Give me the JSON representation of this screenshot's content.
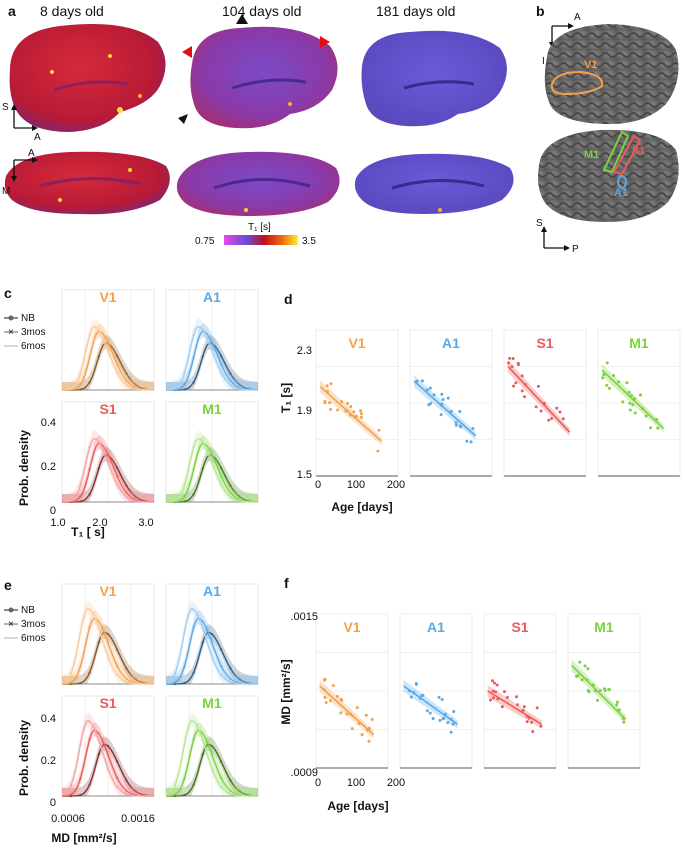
{
  "figure": {
    "panels": {
      "a": "a",
      "b": "b",
      "c": "c",
      "d": "d",
      "e": "e",
      "f": "f"
    },
    "ages": [
      "8 days old",
      "104 days old",
      "181 days old"
    ],
    "orientation": {
      "S": "S",
      "A": "A",
      "M": "M",
      "I": "I",
      "P": "P"
    },
    "colorbar": {
      "title": "T₁ [s]",
      "min": "0.75",
      "max": "3.5"
    },
    "regions": [
      "V1",
      "A1",
      "S1",
      "M1"
    ],
    "region_colors": {
      "V1": "#f5a04a",
      "A1": "#5aa8e6",
      "S1": "#ee5a5a",
      "M1": "#7ad23c"
    },
    "legend": [
      "NB",
      "3mos",
      "6mos"
    ]
  },
  "chart_data": [
    {
      "id": "c",
      "type": "line",
      "ylabel": "Prob. density",
      "xlabel": "T₁ [ s]",
      "xticks": [
        "1.0",
        "2.0",
        "3.0"
      ],
      "yticks": [
        "0",
        "0.2",
        "0.4"
      ],
      "ylim": [
        0,
        0.4
      ],
      "xlim": [
        1.0,
        3.0
      ],
      "series_peaks": {
        "NB": 1.95,
        "3mos": 1.8,
        "6mos": 1.7
      },
      "peak_density": [
        0.2,
        0.25,
        0.27
      ]
    },
    {
      "id": "d",
      "type": "scatter",
      "ylabel": "T₁ [s]",
      "xlabel": "Age [days]",
      "yticks": [
        "2.3",
        "1.9",
        "1.5"
      ],
      "ylim": [
        1.5,
        2.3
      ],
      "xticks": [
        "0",
        "100",
        "200"
      ],
      "xlim": [
        0,
        200
      ],
      "fits": [
        {
          "region": "V1",
          "start": 1.99,
          "end": 1.69
        },
        {
          "region": "A1",
          "start": 2.02,
          "end": 1.72
        },
        {
          "region": "S1",
          "start": 2.1,
          "end": 1.74
        },
        {
          "region": "M1",
          "start": 2.08,
          "end": 1.76
        }
      ]
    },
    {
      "id": "e",
      "type": "line",
      "ylabel": "Prob. density",
      "xlabel": "MD [mm²/s]",
      "xticks": [
        "0.0006",
        "0.0016"
      ],
      "yticks": [
        "0",
        "0.2",
        "0.4"
      ],
      "ylim": [
        0,
        0.4
      ],
      "xlim": [
        0.0006,
        0.0016
      ],
      "series_peaks": {
        "NB": 0.00106,
        "3mos": 0.00095,
        "6mos": 0.00088
      },
      "peak_density": [
        0.22,
        0.28,
        0.32
      ]
    },
    {
      "id": "f",
      "type": "scatter",
      "ylabel": "MD [mm²/s]",
      "xlabel": "Age [days]",
      "yticks": [
        ".0015",
        ".0009"
      ],
      "ylim": [
        0.0009,
        0.0015
      ],
      "xticks": [
        "0",
        "100",
        "200"
      ],
      "xlim": [
        0,
        200
      ],
      "fits": [
        {
          "region": "V1",
          "start": 0.00122,
          "end": 0.00103
        },
        {
          "region": "A1",
          "start": 0.00122,
          "end": 0.00107
        },
        {
          "region": "S1",
          "start": 0.0012,
          "end": 0.00107
        },
        {
          "region": "M1",
          "start": 0.0013,
          "end": 0.00109
        }
      ]
    }
  ]
}
